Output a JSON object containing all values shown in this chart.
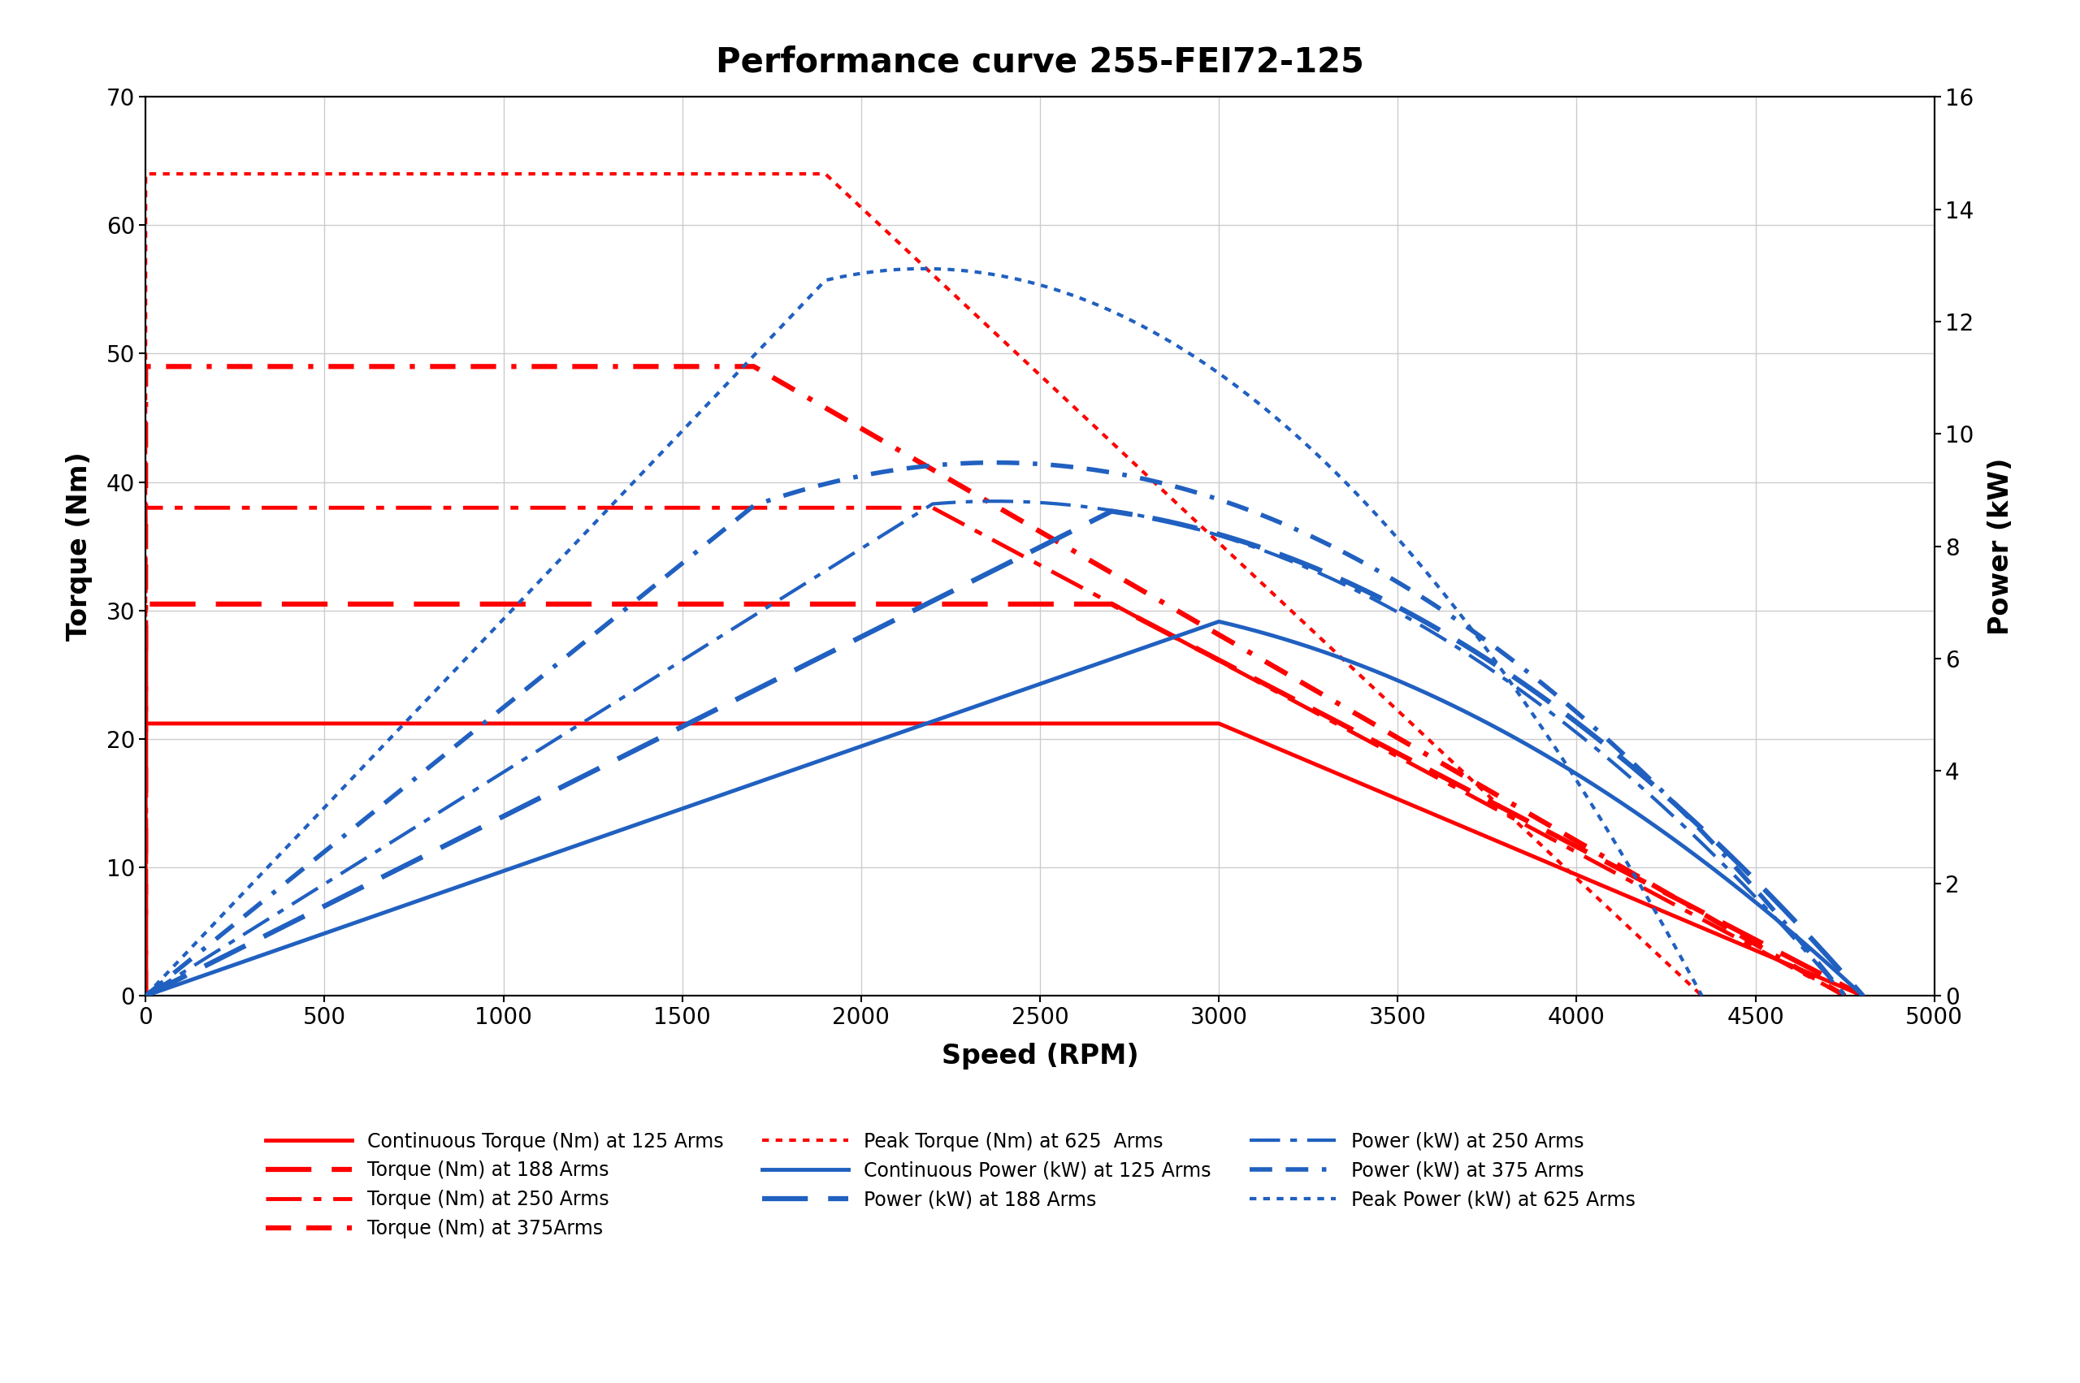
{
  "title": "Performance curve 255-FEI72-125",
  "xlabel": "Speed (RPM)",
  "ylabel_left": "Torque (Nm)",
  "ylabel_right": "Power (kW)",
  "xlim": [
    0,
    5000
  ],
  "ylim_left": [
    0,
    70
  ],
  "ylim_right": [
    0,
    16
  ],
  "xticks": [
    0,
    500,
    1000,
    1500,
    2000,
    2500,
    3000,
    3500,
    4000,
    4500,
    5000
  ],
  "yticks_left": [
    0,
    10,
    20,
    30,
    40,
    50,
    60,
    70
  ],
  "yticks_right": [
    0,
    2,
    4,
    6,
    8,
    10,
    12,
    14,
    16
  ],
  "red_color": "#FF0000",
  "blue_color": "#2060C0",
  "background_color": "#FFFFFF",
  "grid_color": "#CCCCCC",
  "title_fontsize": 30,
  "label_fontsize": 24,
  "tick_fontsize": 20,
  "legend_fontsize": 17,
  "torque_curves": [
    {
      "flat_val": 21.2,
      "flat_end": 3000,
      "end_rpm": 4800,
      "color": "#FF0000",
      "ls": "solid",
      "lw": 3.5,
      "label": "Continuous Torque (Nm) at 125 Arms"
    },
    {
      "flat_val": 30.5,
      "flat_end": 2700,
      "end_rpm": 4800,
      "color": "#FF0000",
      "ls": "dashed",
      "lw": 4.5,
      "label": "Torque (Nm) at 188 Arms"
    },
    {
      "flat_val": 38.0,
      "flat_end": 2200,
      "end_rpm": 4750,
      "color": "#FF0000",
      "ls": "dashdot",
      "lw": 3.5,
      "label": "Torque (Nm) at 250 Arms"
    },
    {
      "flat_val": 49.0,
      "flat_end": 1700,
      "end_rpm": 4750,
      "color": "#FF0000",
      "ls": "ldash",
      "lw": 4.5,
      "label": "Torque (Nm) at 375Arms"
    },
    {
      "flat_val": 64.0,
      "flat_end": 1900,
      "end_rpm": 4350,
      "color": "#FF0000",
      "ls": "dotted",
      "lw": 3.0,
      "label": "Peak Torque (Nm) at 625  Arms"
    }
  ],
  "power_curves": [
    {
      "flat_val": 21.2,
      "flat_end": 3000,
      "end_rpm": 4800,
      "color": "#2060C0",
      "ls": "solid",
      "lw": 3.5,
      "label": "Continuous Power (kW) at 125 Arms"
    },
    {
      "flat_val": 30.5,
      "flat_end": 2700,
      "end_rpm": 4800,
      "color": "#2060C0",
      "ls": "dashed",
      "lw": 4.5,
      "label": "Power (kW) at 188 Arms"
    },
    {
      "flat_val": 38.0,
      "flat_end": 2200,
      "end_rpm": 4750,
      "color": "#2060C0",
      "ls": "dashdot",
      "lw": 3.0,
      "label": "Power (kW) at 250 Arms"
    },
    {
      "flat_val": 49.0,
      "flat_end": 1700,
      "end_rpm": 4750,
      "color": "#2060C0",
      "ls": "ldash",
      "lw": 4.0,
      "label": "Power (kW) at 375 Arms"
    },
    {
      "flat_val": 64.0,
      "flat_end": 1900,
      "end_rpm": 4350,
      "color": "#2060C0",
      "ls": "dotted",
      "lw": 3.0,
      "label": "Peak Power (kW) at 625 Arms"
    }
  ],
  "legend_rows": [
    [
      "Continuous Torque (Nm) at 125 Arms",
      "Torque (Nm) at 188 Arms",
      "Torque (Nm) at 250 Arms"
    ],
    [
      "Torque (Nm) at 375Arms",
      "Peak Torque (Nm) at 625  Arms",
      "Continuous Power (kW) at 125 Arms"
    ],
    [
      "Power (kW) at 188 Arms",
      "Power (kW) at 250 Arms",
      "Power (kW) at 375 Arms"
    ],
    [
      "Peak Power (kW) at 625 Arms",
      "",
      ""
    ]
  ]
}
